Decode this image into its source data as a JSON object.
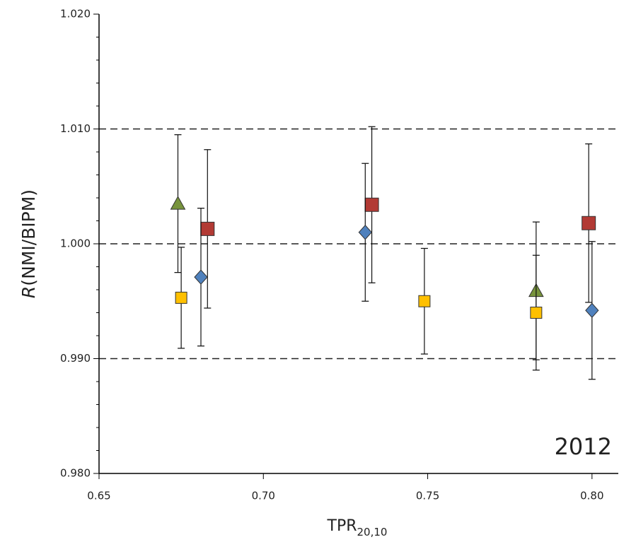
{
  "chart_data": {
    "type": "scatter",
    "xlabel": [
      "TPR",
      "20,10"
    ],
    "ylabel": [
      "R",
      "(NMI/BIPM)"
    ],
    "annotation": "2012",
    "xlim": [
      0.65,
      0.808
    ],
    "ylim": [
      0.98,
      1.02
    ],
    "xticks": [
      0.65,
      {
        "value": 0.7,
        "label": "0.70"
      },
      0.75,
      {
        "value": 0.8,
        "label": "0.80"
      }
    ],
    "yticks": [
      {
        "value": 0.98,
        "label": "0.980"
      },
      {
        "value": 0.99,
        "label": "0.990"
      },
      {
        "value": 1.0,
        "label": "1.000"
      },
      {
        "value": 1.01,
        "label": "1.010"
      },
      {
        "value": 1.02,
        "label": "1.020"
      }
    ],
    "y_minor_divisions": 5,
    "dashed_lines": [
      0.99,
      1.0,
      1.01
    ],
    "series": [
      {
        "color": "#77933c",
        "marker": "triangle",
        "x": [
          0.674,
          0.783
        ],
        "values": [
          1.0035,
          0.9959
        ],
        "errors": [
          0.006,
          0.006
        ]
      },
      {
        "color": "#b23a34",
        "marker": "square",
        "x": [
          0.683,
          0.733,
          0.799
        ],
        "values": [
          1.0013,
          1.0034,
          1.0018
        ],
        "errors": [
          0.0069,
          0.0068,
          0.0069
        ]
      },
      {
        "color": "#4f81bd",
        "marker": "diamond",
        "x": [
          0.681,
          0.731,
          0.8
        ],
        "values": [
          0.9971,
          1.001,
          0.9942
        ],
        "errors": [
          0.006,
          0.006,
          0.006
        ]
      },
      {
        "color": "#ffc000",
        "marker": "square-small",
        "x": [
          0.675,
          0.749,
          0.783
        ],
        "values": [
          0.9953,
          0.995,
          0.994
        ],
        "errors": [
          0.0044,
          0.0046,
          0.005
        ]
      }
    ]
  }
}
